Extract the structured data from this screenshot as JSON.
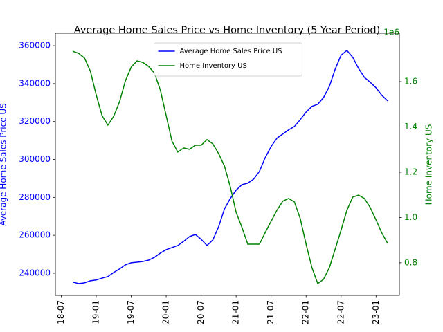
{
  "chart_data": {
    "type": "line",
    "title": "Average Home Sales Price vs Home Inventory (5 Year Period)",
    "ylabel": "Average Home Sales Price US",
    "y2label": "Home Inventory US",
    "y2_offset_label": "1e6",
    "x": [
      "2018-09",
      "2018-10",
      "2018-11",
      "2018-12",
      "2019-01",
      "2019-02",
      "2019-03",
      "2019-04",
      "2019-05",
      "2019-06",
      "2019-07",
      "2019-08",
      "2019-09",
      "2019-10",
      "2019-11",
      "2019-12",
      "2020-01",
      "2020-02",
      "2020-03",
      "2020-04",
      "2020-05",
      "2020-06",
      "2020-07",
      "2020-08",
      "2020-09",
      "2020-10",
      "2020-11",
      "2020-12",
      "2021-01",
      "2021-02",
      "2021-03",
      "2021-04",
      "2021-05",
      "2021-06",
      "2021-07",
      "2021-08",
      "2021-09",
      "2021-10",
      "2021-11",
      "2021-12",
      "2022-01",
      "2022-02",
      "2022-03",
      "2022-04",
      "2022-05",
      "2022-06",
      "2022-07",
      "2022-08",
      "2022-09",
      "2022-10",
      "2022-11",
      "2022-12",
      "2023-01",
      "2023-02",
      "2023-03"
    ],
    "series": [
      {
        "name": "Average Home Sales Price US",
        "color": "blue",
        "axis": "y",
        "values": [
          235300,
          234500,
          234900,
          236000,
          236400,
          237400,
          238200,
          240400,
          242200,
          244400,
          245500,
          245800,
          246200,
          246900,
          248400,
          250600,
          252400,
          253500,
          254600,
          256800,
          259300,
          260400,
          257900,
          254600,
          257500,
          264500,
          273900,
          279400,
          283800,
          286700,
          287500,
          289600,
          293700,
          301000,
          306800,
          311200,
          313400,
          315600,
          317400,
          321000,
          325000,
          328000,
          329100,
          332700,
          338600,
          347700,
          355000,
          357500,
          353900,
          348000,
          343300,
          340700,
          337800,
          333800,
          330900
        ]
      },
      {
        "name": "Home Inventory US",
        "color": "green",
        "axis": "y2",
        "values": [
          1.734,
          1.725,
          1.704,
          1.646,
          1.542,
          1.45,
          1.408,
          1.447,
          1.511,
          1.603,
          1.664,
          1.692,
          1.685,
          1.667,
          1.637,
          1.563,
          1.45,
          1.337,
          1.289,
          1.307,
          1.301,
          1.319,
          1.319,
          1.344,
          1.325,
          1.282,
          1.227,
          1.136,
          1.023,
          0.956,
          0.882,
          0.882,
          0.882,
          0.934,
          0.983,
          1.032,
          1.072,
          1.084,
          1.069,
          0.995,
          0.882,
          0.779,
          0.708,
          0.727,
          0.779,
          0.861,
          0.944,
          1.032,
          1.09,
          1.099,
          1.084,
          1.044,
          0.989,
          0.931,
          0.885
        ]
      }
    ],
    "xlim": [
      "2018-06",
      "2023-05"
    ],
    "xticks": [
      {
        "value": "2018-07",
        "label": "18-07"
      },
      {
        "value": "2019-01",
        "label": "19-01"
      },
      {
        "value": "2019-07",
        "label": "19-07"
      },
      {
        "value": "2020-01",
        "label": "20-01"
      },
      {
        "value": "2020-07",
        "label": "20-07"
      },
      {
        "value": "2021-01",
        "label": "21-01"
      },
      {
        "value": "2021-07",
        "label": "21-07"
      },
      {
        "value": "2022-01",
        "label": "22-01"
      },
      {
        "value": "2022-07",
        "label": "22-07"
      },
      {
        "value": "2023-01",
        "label": "23-01"
      }
    ],
    "ylim": [
      228300,
      366600
    ],
    "yticks": [
      240000,
      260000,
      280000,
      300000,
      320000,
      340000,
      360000
    ],
    "y2lim": [
      0.656,
      1.814
    ],
    "y2ticks": [
      0.8,
      {
        "value": 1.0,
        "label": "1.0"
      },
      1.2,
      1.4,
      1.6
    ],
    "legend": "upper center",
    "grid": false
  }
}
